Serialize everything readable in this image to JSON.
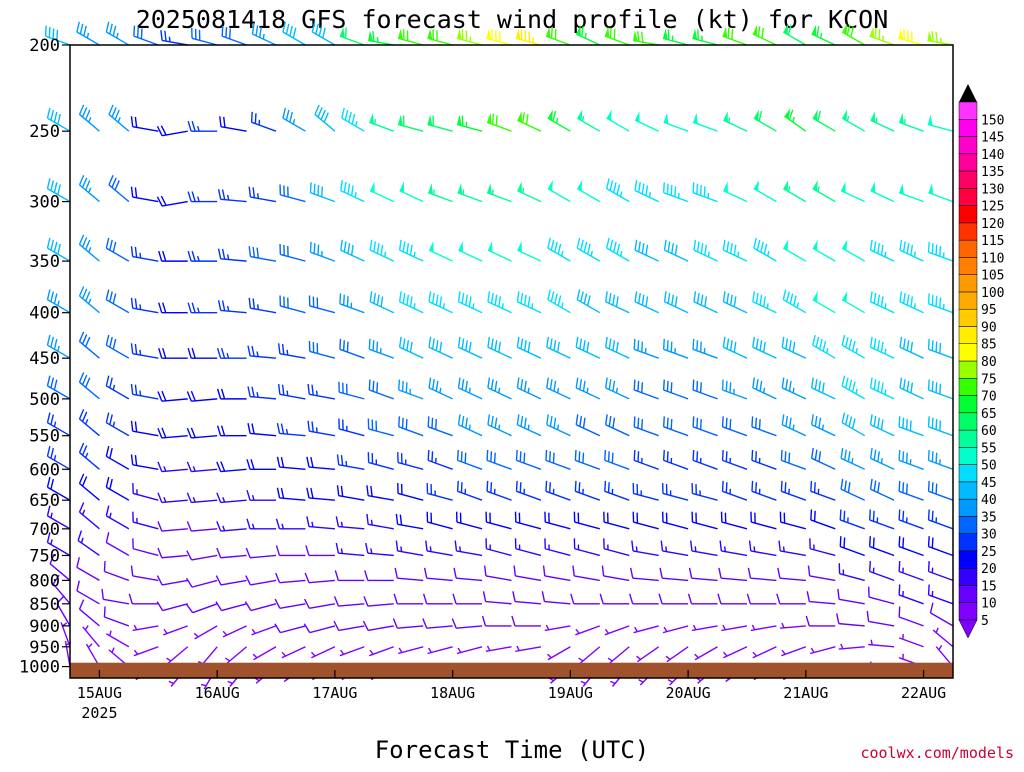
{
  "chart_data": {
    "type": "wind_barb_profile",
    "title": "2025081418 GFS forecast wind profile (kt) for KCON",
    "xlabel": "Forecast Time (UTC)",
    "ylabel": "",
    "credit": "coolwx.com/models",
    "y_scale": "log",
    "ylim": [
      1030,
      200
    ],
    "pressure_levels": [
      1000,
      950,
      900,
      850,
      800,
      750,
      700,
      650,
      600,
      550,
      500,
      450,
      400,
      350,
      300,
      250,
      200
    ],
    "x_ticks": [
      {
        "label": "15AUG",
        "sublabel": "2025",
        "hour": 6
      },
      {
        "label": "16AUG",
        "hour": 30
      },
      {
        "label": "17AUG",
        "hour": 54
      },
      {
        "label": "18AUG",
        "hour": 78
      },
      {
        "label": "19AUG",
        "hour": 102
      },
      {
        "label": "20AUG",
        "hour": 126
      },
      {
        "label": "21AUG",
        "hour": 150
      },
      {
        "label": "22AUG",
        "hour": 174
      }
    ],
    "xlim_hours": [
      0,
      180
    ],
    "terrain": {
      "color": "#a0522d",
      "top_pressure": 990
    },
    "colorbar": {
      "levels": [
        5,
        10,
        15,
        20,
        25,
        30,
        35,
        40,
        45,
        50,
        55,
        60,
        65,
        70,
        75,
        80,
        85,
        90,
        95,
        100,
        105,
        110,
        115,
        120,
        125,
        130,
        135,
        140,
        145,
        150
      ],
      "colors": [
        "#8000ff",
        "#6600ff",
        "#3300ff",
        "#0000ff",
        "#0033ff",
        "#0066ff",
        "#0099ff",
        "#00bbff",
        "#00ddff",
        "#00ffcc",
        "#00ff99",
        "#00ff66",
        "#00ff33",
        "#33ff00",
        "#99ff00",
        "#ffff00",
        "#ffee00",
        "#ffcc00",
        "#ffaa00",
        "#ff9900",
        "#ff8000",
        "#ff6600",
        "#ff3300",
        "#ff0000",
        "#ff0040",
        "#ff0066",
        "#ff0099",
        "#ff00cc",
        "#ff00ee",
        "#ff33ff"
      ]
    },
    "time_hours": [
      0,
      6,
      12,
      18,
      24,
      30,
      36,
      42,
      48,
      54,
      60,
      66,
      72,
      78,
      84,
      90,
      96,
      102,
      108,
      114,
      120,
      126,
      132,
      138,
      144,
      150,
      156,
      162,
      168,
      174,
      180
    ],
    "wind_profiles": [
      {
        "level": 200,
        "dir": [
          290,
          300,
          300,
          290,
          280,
          285,
          290,
          295,
          300,
          300,
          290,
          280,
          285,
          285,
          285,
          285,
          285,
          290,
          295,
          290,
          280,
          285,
          285,
          290,
          295,
          300,
          295,
          300,
          290,
          285,
          280
        ],
        "spd": [
          40,
          35,
          35,
          30,
          25,
          30,
          30,
          35,
          40,
          40,
          60,
          65,
          70,
          70,
          75,
          80,
          85,
          70,
          65,
          70,
          70,
          65,
          65,
          70,
          70,
          60,
          65,
          70,
          75,
          80,
          75
        ]
      },
      {
        "level": 250,
        "dir": [
          300,
          310,
          310,
          280,
          260,
          270,
          280,
          290,
          300,
          310,
          300,
          290,
          285,
          285,
          285,
          290,
          295,
          300,
          300,
          300,
          295,
          290,
          290,
          295,
          300,
          305,
          300,
          300,
          295,
          290,
          285
        ],
        "spd": [
          40,
          35,
          35,
          20,
          20,
          25,
          20,
          25,
          35,
          40,
          45,
          55,
          60,
          60,
          65,
          70,
          70,
          65,
          55,
          50,
          50,
          50,
          50,
          55,
          60,
          65,
          60,
          55,
          55,
          55,
          50
        ]
      },
      {
        "level": 300,
        "dir": [
          300,
          310,
          310,
          280,
          260,
          270,
          275,
          280,
          285,
          290,
          295,
          295,
          295,
          290,
          290,
          290,
          295,
          300,
          300,
          300,
          295,
          290,
          290,
          295,
          300,
          300,
          300,
          295,
          295,
          290,
          290
        ],
        "spd": [
          40,
          35,
          30,
          20,
          20,
          25,
          25,
          25,
          30,
          40,
          45,
          50,
          50,
          55,
          55,
          55,
          55,
          50,
          50,
          45,
          45,
          45,
          45,
          50,
          50,
          55,
          55,
          50,
          50,
          50,
          50
        ]
      },
      {
        "level": 350,
        "dir": [
          300,
          310,
          300,
          280,
          270,
          270,
          275,
          280,
          285,
          290,
          295,
          295,
          295,
          295,
          295,
          295,
          295,
          300,
          300,
          300,
          295,
          295,
          295,
          295,
          300,
          300,
          300,
          300,
          295,
          295,
          290
        ],
        "spd": [
          40,
          35,
          30,
          25,
          20,
          25,
          25,
          30,
          30,
          35,
          40,
          45,
          45,
          50,
          50,
          50,
          50,
          45,
          45,
          45,
          40,
          40,
          45,
          45,
          45,
          50,
          50,
          50,
          45,
          45,
          45
        ]
      },
      {
        "level": 400,
        "dir": [
          300,
          310,
          300,
          280,
          270,
          270,
          275,
          280,
          285,
          285,
          290,
          295,
          295,
          295,
          295,
          295,
          295,
          300,
          300,
          295,
          295,
          295,
          295,
          295,
          295,
          300,
          300,
          300,
          295,
          295,
          290
        ],
        "spd": [
          35,
          35,
          30,
          25,
          20,
          25,
          25,
          25,
          30,
          30,
          35,
          40,
          45,
          45,
          45,
          45,
          45,
          45,
          40,
          40,
          40,
          40,
          40,
          40,
          45,
          45,
          50,
          50,
          45,
          45,
          45
        ]
      },
      {
        "level": 450,
        "dir": [
          300,
          310,
          300,
          280,
          270,
          270,
          270,
          275,
          280,
          285,
          290,
          290,
          295,
          295,
          295,
          295,
          295,
          295,
          295,
          295,
          290,
          290,
          290,
          295,
          295,
          295,
          300,
          300,
          295,
          295,
          290
        ],
        "spd": [
          35,
          30,
          30,
          25,
          20,
          20,
          25,
          25,
          25,
          30,
          30,
          35,
          40,
          40,
          40,
          40,
          40,
          40,
          40,
          40,
          35,
          35,
          35,
          40,
          40,
          40,
          45,
          45,
          45,
          40,
          40
        ]
      },
      {
        "level": 500,
        "dir": [
          300,
          310,
          300,
          280,
          265,
          265,
          270,
          275,
          280,
          280,
          285,
          290,
          290,
          295,
          295,
          295,
          295,
          295,
          295,
          295,
          290,
          290,
          290,
          290,
          295,
          295,
          295,
          300,
          295,
          295,
          290
        ],
        "spd": [
          30,
          30,
          25,
          25,
          20,
          20,
          20,
          25,
          25,
          25,
          30,
          30,
          35,
          35,
          35,
          35,
          35,
          35,
          35,
          35,
          30,
          30,
          30,
          35,
          35,
          35,
          40,
          45,
          45,
          40,
          40
        ]
      },
      {
        "level": 550,
        "dir": [
          300,
          310,
          300,
          280,
          265,
          265,
          270,
          275,
          275,
          280,
          285,
          285,
          290,
          290,
          295,
          295,
          295,
          295,
          295,
          295,
          290,
          290,
          290,
          290,
          290,
          295,
          295,
          300,
          295,
          290,
          290
        ],
        "spd": [
          25,
          25,
          25,
          20,
          20,
          20,
          20,
          20,
          25,
          25,
          25,
          30,
          30,
          30,
          35,
          35,
          35,
          35,
          30,
          30,
          30,
          30,
          30,
          30,
          30,
          35,
          35,
          40,
          40,
          40,
          40
        ]
      },
      {
        "level": 600,
        "dir": [
          300,
          310,
          300,
          280,
          265,
          265,
          265,
          270,
          275,
          275,
          280,
          285,
          285,
          290,
          290,
          290,
          290,
          290,
          290,
          290,
          290,
          290,
          290,
          290,
          290,
          290,
          295,
          295,
          295,
          290,
          290
        ],
        "spd": [
          25,
          25,
          20,
          20,
          15,
          15,
          20,
          20,
          20,
          20,
          25,
          25,
          25,
          25,
          30,
          30,
          30,
          30,
          30,
          30,
          25,
          25,
          25,
          25,
          25,
          30,
          30,
          35,
          35,
          35,
          35
        ]
      },
      {
        "level": 650,
        "dir": [
          300,
          310,
          300,
          285,
          265,
          265,
          265,
          270,
          275,
          275,
          280,
          280,
          285,
          285,
          290,
          290,
          290,
          290,
          290,
          290,
          285,
          285,
          285,
          290,
          290,
          290,
          290,
          295,
          295,
          290,
          290
        ],
        "spd": [
          20,
          20,
          20,
          15,
          15,
          15,
          15,
          15,
          20,
          20,
          20,
          20,
          20,
          25,
          25,
          25,
          25,
          25,
          25,
          25,
          25,
          25,
          25,
          25,
          25,
          25,
          25,
          30,
          30,
          30,
          30
        ]
      },
      {
        "level": 700,
        "dir": [
          300,
          310,
          300,
          285,
          265,
          265,
          265,
          270,
          270,
          275,
          275,
          280,
          280,
          285,
          285,
          285,
          285,
          285,
          285,
          285,
          285,
          285,
          285,
          285,
          285,
          285,
          290,
          290,
          290,
          290,
          290
        ],
        "spd": [
          15,
          15,
          15,
          15,
          10,
          10,
          15,
          15,
          15,
          15,
          15,
          15,
          20,
          20,
          20,
          20,
          20,
          20,
          20,
          20,
          20,
          20,
          20,
          20,
          20,
          20,
          20,
          25,
          25,
          25,
          25
        ]
      },
      {
        "level": 750,
        "dir": [
          300,
          305,
          300,
          285,
          265,
          260,
          265,
          265,
          270,
          270,
          275,
          275,
          280,
          280,
          280,
          285,
          285,
          285,
          285,
          285,
          280,
          280,
          280,
          280,
          280,
          280,
          285,
          290,
          290,
          290,
          290
        ],
        "spd": [
          15,
          15,
          10,
          10,
          10,
          10,
          10,
          10,
          10,
          10,
          15,
          15,
          15,
          15,
          15,
          15,
          15,
          15,
          15,
          15,
          15,
          15,
          15,
          15,
          15,
          15,
          15,
          20,
          20,
          20,
          20
        ]
      },
      {
        "level": 800,
        "dir": [
          310,
          300,
          290,
          280,
          260,
          255,
          260,
          260,
          265,
          265,
          270,
          270,
          275,
          275,
          275,
          280,
          280,
          280,
          280,
          280,
          275,
          275,
          275,
          275,
          275,
          275,
          280,
          285,
          290,
          290,
          290
        ],
        "spd": [
          10,
          10,
          10,
          10,
          10,
          10,
          10,
          10,
          10,
          10,
          10,
          10,
          10,
          10,
          10,
          10,
          10,
          10,
          10,
          10,
          10,
          10,
          10,
          10,
          10,
          10,
          10,
          15,
          15,
          15,
          15
        ]
      },
      {
        "level": 850,
        "dir": [
          320,
          300,
          280,
          270,
          255,
          250,
          255,
          255,
          260,
          260,
          265,
          265,
          270,
          270,
          270,
          275,
          275,
          275,
          270,
          270,
          270,
          270,
          270,
          270,
          270,
          270,
          275,
          280,
          285,
          290,
          290
        ],
        "spd": [
          10,
          10,
          10,
          10,
          10,
          10,
          10,
          10,
          10,
          10,
          10,
          10,
          10,
          10,
          10,
          10,
          10,
          10,
          10,
          10,
          10,
          10,
          10,
          10,
          10,
          10,
          10,
          10,
          10,
          15,
          15
        ]
      },
      {
        "level": 900,
        "dir": [
          330,
          310,
          290,
          260,
          250,
          240,
          245,
          250,
          255,
          255,
          260,
          260,
          265,
          265,
          265,
          270,
          270,
          260,
          250,
          250,
          255,
          255,
          260,
          260,
          260,
          265,
          270,
          275,
          280,
          290,
          300
        ],
        "spd": [
          10,
          10,
          10,
          5,
          5,
          5,
          5,
          5,
          10,
          10,
          10,
          10,
          10,
          10,
          10,
          10,
          10,
          5,
          5,
          5,
          5,
          5,
          5,
          5,
          5,
          5,
          10,
          10,
          10,
          10,
          10
        ]
      },
      {
        "level": 950,
        "dir": [
          340,
          320,
          300,
          250,
          230,
          220,
          230,
          240,
          245,
          245,
          250,
          250,
          255,
          255,
          255,
          260,
          260,
          240,
          230,
          230,
          235,
          235,
          240,
          245,
          245,
          250,
          255,
          265,
          275,
          290,
          310
        ],
        "spd": [
          5,
          5,
          5,
          5,
          5,
          5,
          5,
          5,
          5,
          5,
          5,
          5,
          5,
          5,
          5,
          5,
          5,
          5,
          5,
          5,
          5,
          5,
          5,
          5,
          5,
          5,
          5,
          5,
          5,
          5,
          5
        ]
      },
      {
        "level": 1000,
        "dir": [
          350,
          330,
          310,
          240,
          220,
          210,
          220,
          230,
          235,
          240,
          240,
          240,
          245,
          245,
          245,
          250,
          250,
          230,
          220,
          220,
          225,
          225,
          230,
          235,
          240,
          240,
          245,
          255,
          270,
          290,
          320
        ],
        "spd": [
          5,
          5,
          5,
          5,
          5,
          5,
          5,
          5,
          5,
          5,
          5,
          5,
          5,
          5,
          5,
          5,
          5,
          5,
          5,
          5,
          5,
          5,
          5,
          5,
          5,
          5,
          5,
          5,
          5,
          5,
          5
        ]
      }
    ]
  }
}
